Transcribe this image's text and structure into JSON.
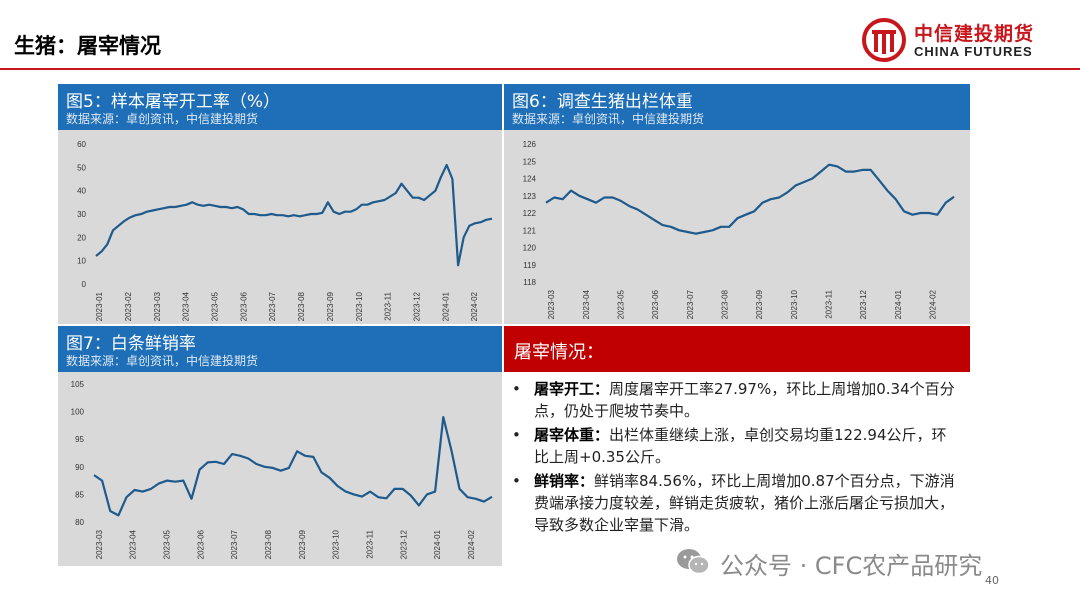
{
  "page": {
    "title": "生猪：屠宰情况",
    "logo_cn": "中信建投期货",
    "logo_en": "CHINA FUTURES",
    "page_number": "40",
    "watermark": "公众号 · CFC农产品研究",
    "accent_red": "#c8161d",
    "header_blue": "#1f6fb8",
    "line_color": "#1f5a8c"
  },
  "panels": {
    "fig5": {
      "title": "图5：样本屠宰开工率（%）",
      "source": "数据来源：卓创资讯，中信建投期货"
    },
    "fig6": {
      "title": "图6：调查生猪出栏体重",
      "source": "数据来源：卓创资讯，中信建投期货"
    },
    "fig7": {
      "title": "图7：白条鲜销率",
      "source": "数据来源：卓创资讯，中信建投期货"
    }
  },
  "summary": {
    "title": "屠宰情况：",
    "items": [
      {
        "label": "屠宰开工：",
        "text": "周度屠宰开工率27.97%，环比上周增加0.34个百分点，仍处于爬坡节奏中。"
      },
      {
        "label": "屠宰体重：",
        "text": "出栏体重继续上涨，卓创交易均重122.94公斤，环比上周+0.35公斤。"
      },
      {
        "label": "鲜销率：",
        "text": "鲜销率84.56%，环比上周增加0.87个百分点，下游消费端承接力度较差，鲜销走货疲软，猪价上涨后屠企亏损加大，导致多数企业宰量下滑。"
      }
    ]
  },
  "chart_data": [
    {
      "type": "line",
      "title": "图5：样本屠宰开工率（%）",
      "xlabel": "",
      "ylabel": "",
      "x_ticks": [
        "2023-01",
        "2023-02",
        "2023-03",
        "2023-04",
        "2023-05",
        "2023-06",
        "2023-07",
        "2023-08",
        "2023-09",
        "2023-10",
        "2023-11",
        "2023-12",
        "2024-01",
        "2024-02"
      ],
      "y_ticks": [
        0,
        10,
        20,
        30,
        40,
        50,
        60
      ],
      "ylim": [
        0,
        60
      ],
      "grid": false,
      "series": [
        {
          "values": [
            12,
            14,
            17,
            23,
            25,
            27,
            28.5,
            29.5,
            30,
            31,
            31.5,
            32,
            32.5,
            33,
            33,
            33.5,
            34,
            35,
            34,
            33.5,
            34,
            33.5,
            33,
            33,
            32.5,
            33,
            32,
            30,
            30,
            29.5,
            29.5,
            30,
            29.5,
            29.5,
            29,
            29.5,
            29,
            29.5,
            30,
            30,
            30.5,
            35,
            31,
            30,
            31,
            31,
            32,
            34,
            34,
            35,
            35.5,
            36,
            37.5,
            39,
            43,
            40,
            37,
            37,
            36,
            38,
            40,
            46,
            51,
            45,
            8,
            20,
            25,
            26,
            26.5,
            27.5,
            28
          ]
        }
      ]
    },
    {
      "type": "line",
      "title": "图6：调查生猪出栏体重",
      "xlabel": "",
      "ylabel": "",
      "x_ticks": [
        "2023-03",
        "2023-04",
        "2023-05",
        "2023-06",
        "2023-07",
        "2023-08",
        "2023-09",
        "2023-10",
        "2023-11",
        "2023-12",
        "2024-01",
        "2024-02"
      ],
      "y_ticks": [
        118,
        119,
        120,
        121,
        122,
        123,
        124,
        125,
        126
      ],
      "ylim": [
        118,
        126
      ],
      "grid": false,
      "series": [
        {
          "values": [
            122.6,
            122.9,
            122.8,
            123.3,
            123,
            122.8,
            122.6,
            122.9,
            122.9,
            122.7,
            122.4,
            122.2,
            121.9,
            121.6,
            121.3,
            121.2,
            121,
            120.9,
            120.8,
            120.9,
            121,
            121.2,
            121.2,
            121.7,
            121.9,
            122.1,
            122.6,
            122.8,
            122.9,
            123.2,
            123.6,
            123.8,
            124,
            124.4,
            124.8,
            124.7,
            124.4,
            124.4,
            124.5,
            124.5,
            123.9,
            123.3,
            122.8,
            122.1,
            121.9,
            122,
            122,
            121.9,
            122.6,
            122.94
          ]
        }
      ]
    },
    {
      "type": "line",
      "title": "图7：白条鲜销率",
      "xlabel": "",
      "ylabel": "",
      "x_ticks": [
        "2023-03",
        "2023-04",
        "2023-05",
        "2023-06",
        "2023-07",
        "2023-08",
        "2023-09",
        "2023-10",
        "2023-11",
        "2023-12",
        "2024-01",
        "2024-02"
      ],
      "y_ticks": [
        80,
        85,
        90,
        95,
        100,
        105
      ],
      "ylim": [
        80,
        105
      ],
      "grid": false,
      "series": [
        {
          "values": [
            88.5,
            87.5,
            82,
            81.2,
            84.5,
            85.8,
            85.5,
            86,
            87,
            87.5,
            87.3,
            87.5,
            84.2,
            89.5,
            90.8,
            90.9,
            90.5,
            92.3,
            92,
            91.5,
            90.5,
            90,
            89.8,
            89.3,
            89.8,
            92.8,
            92,
            91.8,
            89,
            88,
            86.5,
            85.5,
            85,
            84.6,
            85.5,
            84.5,
            84.3,
            86,
            86,
            84.8,
            83,
            85,
            85.5,
            99,
            93,
            86,
            84.5,
            84.2,
            83.7,
            84.56
          ]
        }
      ]
    }
  ]
}
